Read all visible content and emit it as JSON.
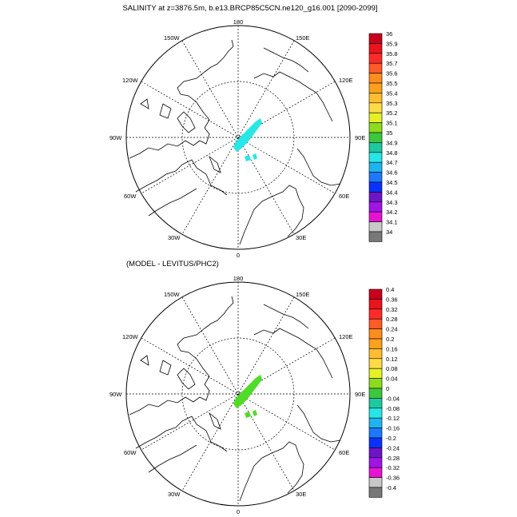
{
  "top_panel": {
    "title": "SALINITY at z=3876.5m, b.e13.BRCP85C5CN.ne120_g16.001 [2090-2099]",
    "lon_labels": {
      "n": "180",
      "s": "0",
      "e": "90E",
      "w": "90W",
      "ne": "150E",
      "nee": "120E",
      "se": "60E",
      "see": "30E",
      "nw": "150W",
      "nww": "120W",
      "sw": "60W",
      "sww": "30W"
    },
    "colorbar": {
      "labels": [
        "36",
        "35.9",
        "35.8",
        "35.7",
        "35.6",
        "35.5",
        "35.4",
        "35.3",
        "35.2",
        "35.1",
        "35",
        "34.9",
        "34.8",
        "34.7",
        "34.6",
        "34.5",
        "34.4",
        "34.3",
        "34.2",
        "34.1",
        "34"
      ],
      "colors": [
        "#c8001e",
        "#e8141e",
        "#ff2a2a",
        "#ff5a28",
        "#ff8c1e",
        "#ffa01e",
        "#ffbe32",
        "#ffdc46",
        "#e6f028",
        "#8cdc1e",
        "#3cc83c",
        "#1ec8a0",
        "#28e6e6",
        "#1eb4f0",
        "#1e78ff",
        "#0a32ff",
        "#6e14c8",
        "#a014e6",
        "#e614d2",
        "#c8c8c8",
        "#787878"
      ]
    },
    "field_color": "#28e6e6"
  },
  "bottom_panel": {
    "title": "(MODEL - LEVITUS/PHC2)",
    "lon_labels": {
      "n": "180",
      "s": "0",
      "e": "90E",
      "w": "90W",
      "ne": "150E",
      "nee": "120E",
      "se": "60E",
      "see": "30E",
      "nw": "150W",
      "nww": "120W",
      "sw": "60W",
      "sww": "30W"
    },
    "colorbar": {
      "labels": [
        "0.4",
        "0.36",
        "0.32",
        "0.28",
        "0.24",
        "0.2",
        "0.16",
        "0.12",
        "0.08",
        "0.04",
        "0",
        "-0.04",
        "-0.08",
        "-0.12",
        "-0.16",
        "-0.2",
        "-0.24",
        "-0.28",
        "-0.32",
        "-0.36",
        "-0.4"
      ],
      "colors": [
        "#c8001e",
        "#e8141e",
        "#ff2a2a",
        "#ff5a28",
        "#ff8c1e",
        "#ffa01e",
        "#ffbe32",
        "#ffdc46",
        "#e6f028",
        "#8cdc1e",
        "#3cc83c",
        "#1ec8a0",
        "#28e6e6",
        "#1eb4f0",
        "#1e78ff",
        "#0a32ff",
        "#6e14c8",
        "#a014e6",
        "#e614d2",
        "#c8c8c8",
        "#787878"
      ]
    },
    "field_color": "#50dc28"
  }
}
